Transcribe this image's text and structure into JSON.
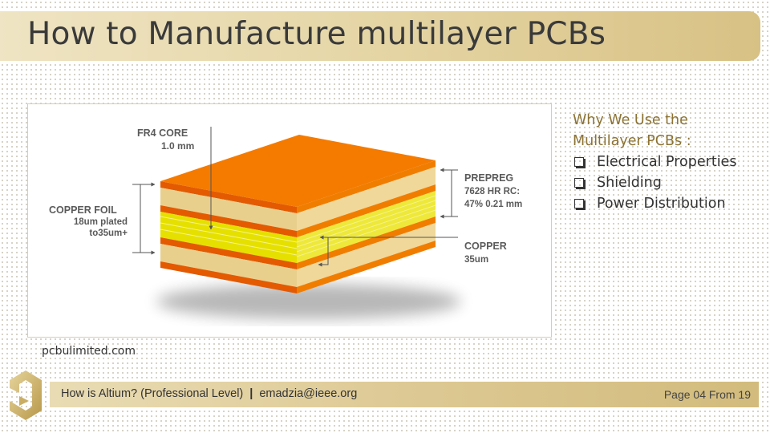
{
  "slide": {
    "title": "How to Manufacture multilayer PCBs"
  },
  "figure": {
    "labels": {
      "fr4_title": "FR4 CORE",
      "fr4_value": "1.0 mm",
      "copper_foil_title": "COPPER FOIL",
      "copper_foil_value_1": "18um plated",
      "copper_foil_value_2": "to35um+",
      "prepreg_title": "PREPREG",
      "prepreg_value_1": "7628 HR RC:",
      "prepreg_value_2": "47% 0.21 mm",
      "copper_title": "COPPER",
      "copper_value": "35um"
    },
    "colors": {
      "copper": "#f07d00",
      "copper_dark": "#e35a00",
      "prepreg": "#e9cf8c",
      "core": "#e6e000",
      "core_light": "#f3ee55"
    }
  },
  "source": "pcbulimited.com",
  "side_panel": {
    "heading_line1": "Why We Use the",
    "heading_line2": "Multilayer PCBs :",
    "items": [
      "Electrical Properties",
      "Shielding",
      "Power Distribution"
    ]
  },
  "footer": {
    "course": "How is Altium? (Professional Level)",
    "separator": "|",
    "email": "emadzia@ieee.org",
    "page": "Page 04 From 19"
  }
}
